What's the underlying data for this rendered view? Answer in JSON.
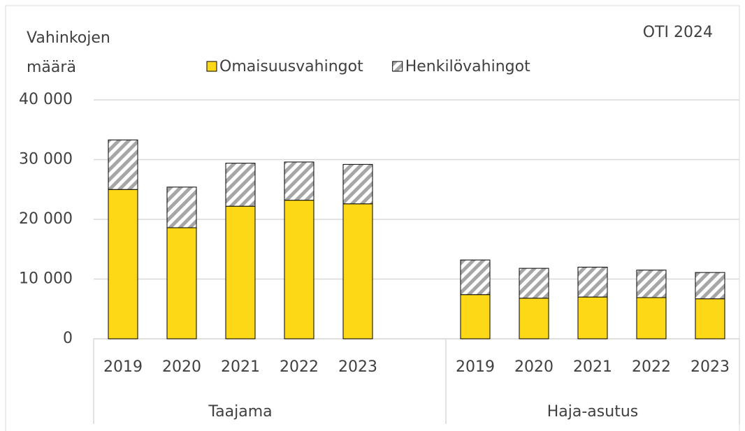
{
  "chart_data": {
    "type": "stacked-bar",
    "y_label": [
      "Vahinkojen",
      "määrä"
    ],
    "annotation": "OTI 2024",
    "categories": [
      "2019",
      "2020",
      "2021",
      "2022",
      "2023",
      null,
      "2019",
      "2020",
      "2021",
      "2022",
      "2023"
    ],
    "groups": [
      "Taajama",
      "Haja-asutus"
    ],
    "series": [
      {
        "name": "Omaisuusvahingot",
        "color": "#fdd816",
        "pattern": "solid",
        "values": [
          25000,
          18600,
          22200,
          23200,
          22600,
          null,
          7400,
          6800,
          7000,
          6900,
          6700
        ]
      },
      {
        "name": "Henkilövahingot",
        "color": "#a6a6a6",
        "pattern": "hatch",
        "values": [
          8300,
          6800,
          7200,
          6400,
          6600,
          null,
          5800,
          5000,
          5000,
          4600,
          4400
        ]
      }
    ],
    "ylim": [
      0,
      40000
    ],
    "yticks": [
      0,
      {
        "value": 10000,
        "label": "10 000"
      },
      {
        "value": 20000,
        "label": "20 000"
      },
      {
        "value": 30000,
        "label": "30 000"
      },
      {
        "value": 40000,
        "label": "40 000"
      }
    ],
    "grid": true,
    "legend": "top"
  }
}
